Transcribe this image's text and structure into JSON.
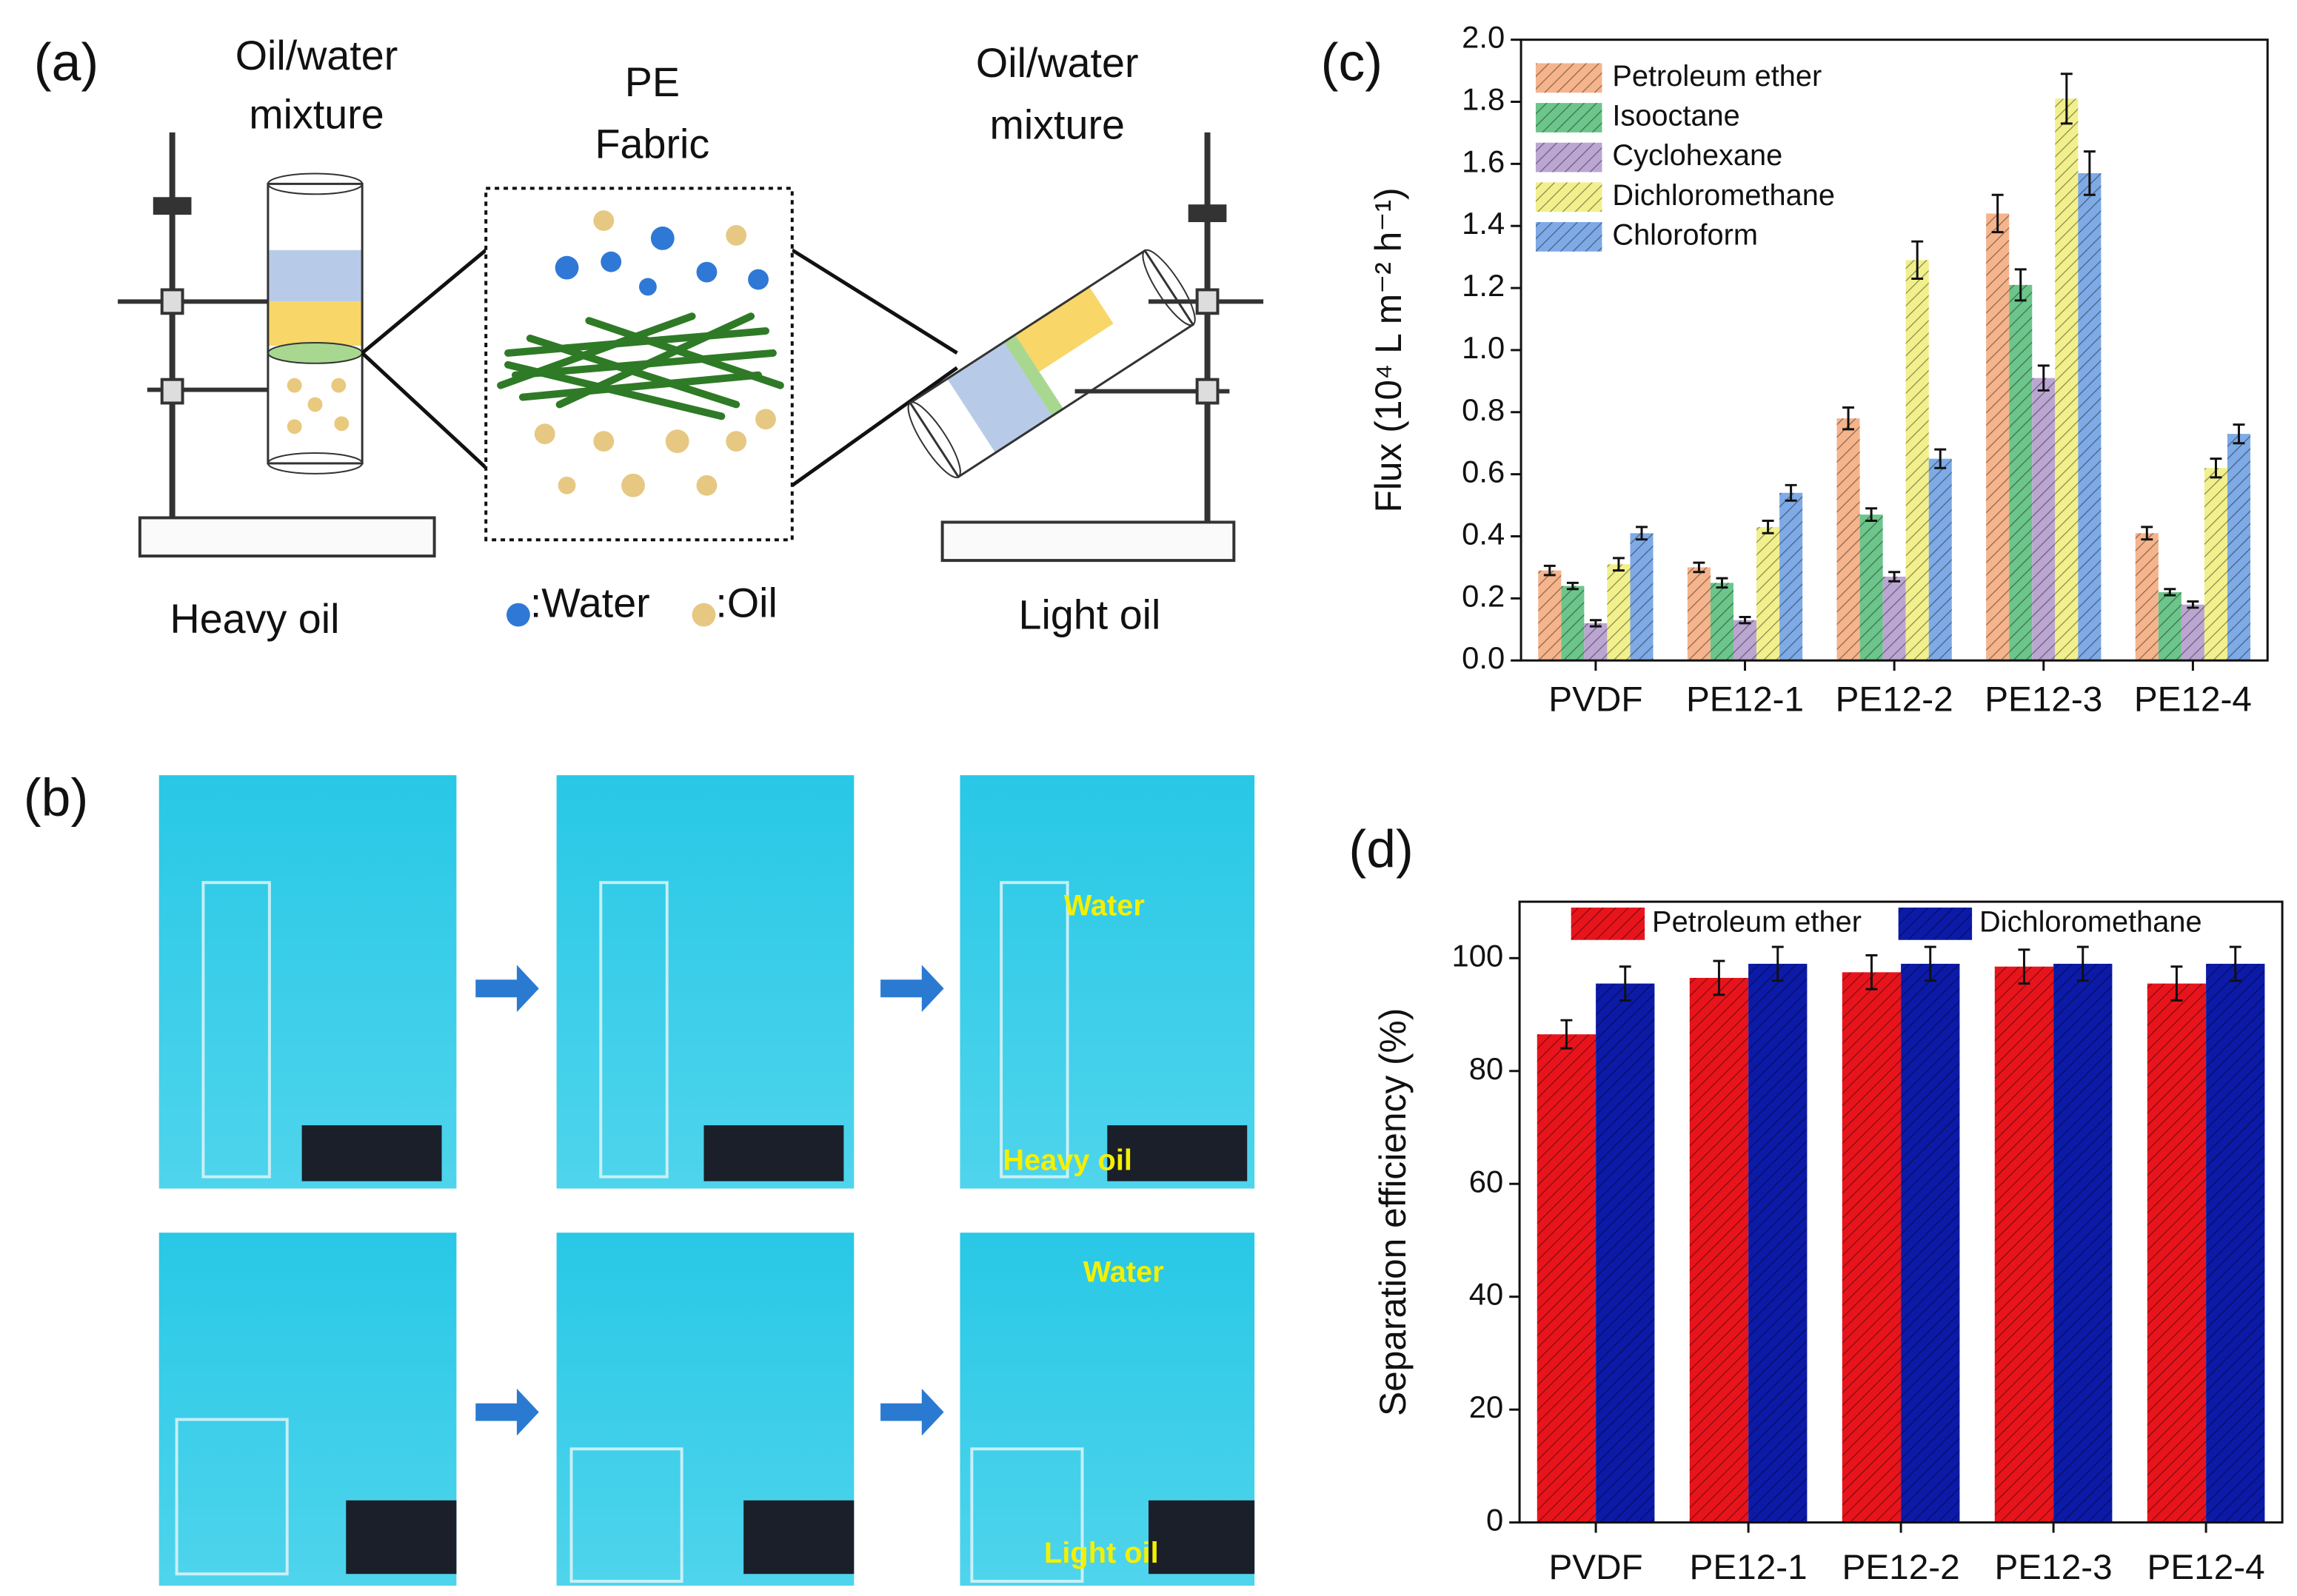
{
  "panels": [
    "(a)",
    "(b)",
    "(c)",
    "(d)"
  ],
  "diagram": {
    "left_label": [
      "Oil/water",
      "mixture"
    ],
    "center_label": [
      "PE",
      "Fabric"
    ],
    "right_label": [
      "Oil/water",
      "mixture"
    ],
    "left_caption": "Heavy oil",
    "right_caption": "Light oil",
    "legend": [
      ":Water",
      ":Oil"
    ]
  },
  "photos": {
    "top_labels": [
      "Water",
      "Heavy oil"
    ],
    "bottom_labels": [
      "Water",
      "Light oil"
    ]
  },
  "chart_data": [
    {
      "type": "bar",
      "ylabel": "Flux (10⁴ L m⁻² h⁻¹)",
      "categories": [
        "PVDF",
        "PE12-1",
        "PE12-2",
        "PE12-3",
        "PE12-4"
      ],
      "series": [
        {
          "name": "Petroleum ether",
          "color": "#f5b48c",
          "values": [
            0.29,
            0.3,
            0.78,
            1.44,
            0.41
          ],
          "errors": [
            0.015,
            0.015,
            0.035,
            0.06,
            0.02
          ]
        },
        {
          "name": "Isooctane",
          "color": "#6cc58a",
          "values": [
            0.24,
            0.25,
            0.47,
            1.21,
            0.22
          ],
          "errors": [
            0.01,
            0.015,
            0.02,
            0.05,
            0.01
          ]
        },
        {
          "name": "Cyclohexane",
          "color": "#bba6d2",
          "values": [
            0.12,
            0.13,
            0.27,
            0.91,
            0.18
          ],
          "errors": [
            0.01,
            0.01,
            0.015,
            0.04,
            0.01
          ]
        },
        {
          "name": "Dichloromethane",
          "color": "#f2f08c",
          "values": [
            0.31,
            0.43,
            1.29,
            1.81,
            0.62
          ],
          "errors": [
            0.02,
            0.02,
            0.06,
            0.08,
            0.03
          ]
        },
        {
          "name": "Chloroform",
          "color": "#7eaae6",
          "values": [
            0.41,
            0.54,
            0.65,
            1.57,
            0.73
          ],
          "errors": [
            0.02,
            0.025,
            0.03,
            0.07,
            0.03
          ]
        }
      ],
      "ylim": [
        0,
        2
      ],
      "yticks": [
        {
          "value": 0,
          "label": "0.0"
        },
        0.2,
        0.4,
        0.6,
        0.8,
        {
          "value": 1,
          "label": "1.0"
        },
        1.2,
        1.4,
        1.6,
        1.8,
        {
          "value": 2,
          "label": "2.0"
        }
      ],
      "legend": "upper left",
      "hatch": true
    },
    {
      "type": "bar",
      "ylabel": "Separation efficiency (%)",
      "categories": [
        "PVDF",
        "PE12-1",
        "PE12-2",
        "PE12-3",
        "PE12-4"
      ],
      "series": [
        {
          "name": "Petroleum ether",
          "color": "#e8141c",
          "values": [
            86.5,
            96.5,
            97.5,
            98.5,
            95.5
          ],
          "errors": [
            2.5,
            3,
            3,
            3,
            3
          ]
        },
        {
          "name": "Dichloromethane",
          "color": "#0c1aa8",
          "values": [
            95.5,
            99,
            99,
            99,
            99
          ],
          "errors": [
            3,
            3,
            3,
            3,
            3
          ]
        }
      ],
      "ylim": [
        0,
        110
      ],
      "yticks": [
        0,
        20,
        40,
        60,
        80,
        100
      ],
      "legend": "upper center",
      "hatch": true
    }
  ]
}
